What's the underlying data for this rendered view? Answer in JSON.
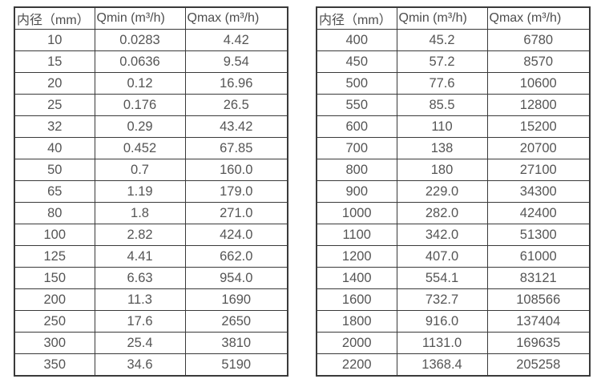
{
  "colors": {
    "background": "#ffffff",
    "border": "#3a3a3a",
    "text": "#555555",
    "header_text": "#4d4d4d"
  },
  "tables": [
    {
      "name": "flow-rate-table-dn10-350",
      "headers": [
        "内径（mm）",
        "Qmin (m³/h)",
        "Qmax (m³/h)"
      ],
      "rows": [
        [
          "10",
          "0.0283",
          "4.42"
        ],
        [
          "15",
          "0.0636",
          "9.54"
        ],
        [
          "20",
          "0.12",
          "16.96"
        ],
        [
          "25",
          "0.176",
          "26.5"
        ],
        [
          "32",
          "0.29",
          "43.42"
        ],
        [
          "40",
          "0.452",
          "67.85"
        ],
        [
          "50",
          "0.7",
          "160.0"
        ],
        [
          "65",
          "1.19",
          "179.0"
        ],
        [
          "80",
          "1.8",
          "271.0"
        ],
        [
          "100",
          "2.82",
          "424.0"
        ],
        [
          "125",
          "4.41",
          "662.0"
        ],
        [
          "150",
          "6.63",
          "954.0"
        ],
        [
          "200",
          "11.3",
          "1690"
        ],
        [
          "250",
          "17.6",
          "2650"
        ],
        [
          "300",
          "25.4",
          "3810"
        ],
        [
          "350",
          "34.6",
          "5190"
        ]
      ]
    },
    {
      "name": "flow-rate-table-dn400-2200",
      "headers": [
        "内径（mm）",
        "Qmin (m³/h)",
        "Qmax (m³/h)"
      ],
      "rows": [
        [
          "400",
          "45.2",
          "6780"
        ],
        [
          "450",
          "57.2",
          "8570"
        ],
        [
          "500",
          "77.6",
          "10600"
        ],
        [
          "550",
          "85.5",
          "12800"
        ],
        [
          "600",
          "110",
          "15200"
        ],
        [
          "700",
          "138",
          "20700"
        ],
        [
          "800",
          "180",
          "27100"
        ],
        [
          "900",
          "229.0",
          "34300"
        ],
        [
          "1000",
          "282.0",
          "42400"
        ],
        [
          "1100",
          "342.0",
          "51300"
        ],
        [
          "1200",
          "407.0",
          "61000"
        ],
        [
          "1400",
          "554.1",
          "83121"
        ],
        [
          "1600",
          "732.7",
          "108566"
        ],
        [
          "1800",
          "916.0",
          "137404"
        ],
        [
          "2000",
          "1131.0",
          "169635"
        ],
        [
          "2200",
          "1368.4",
          "205258"
        ]
      ]
    }
  ]
}
